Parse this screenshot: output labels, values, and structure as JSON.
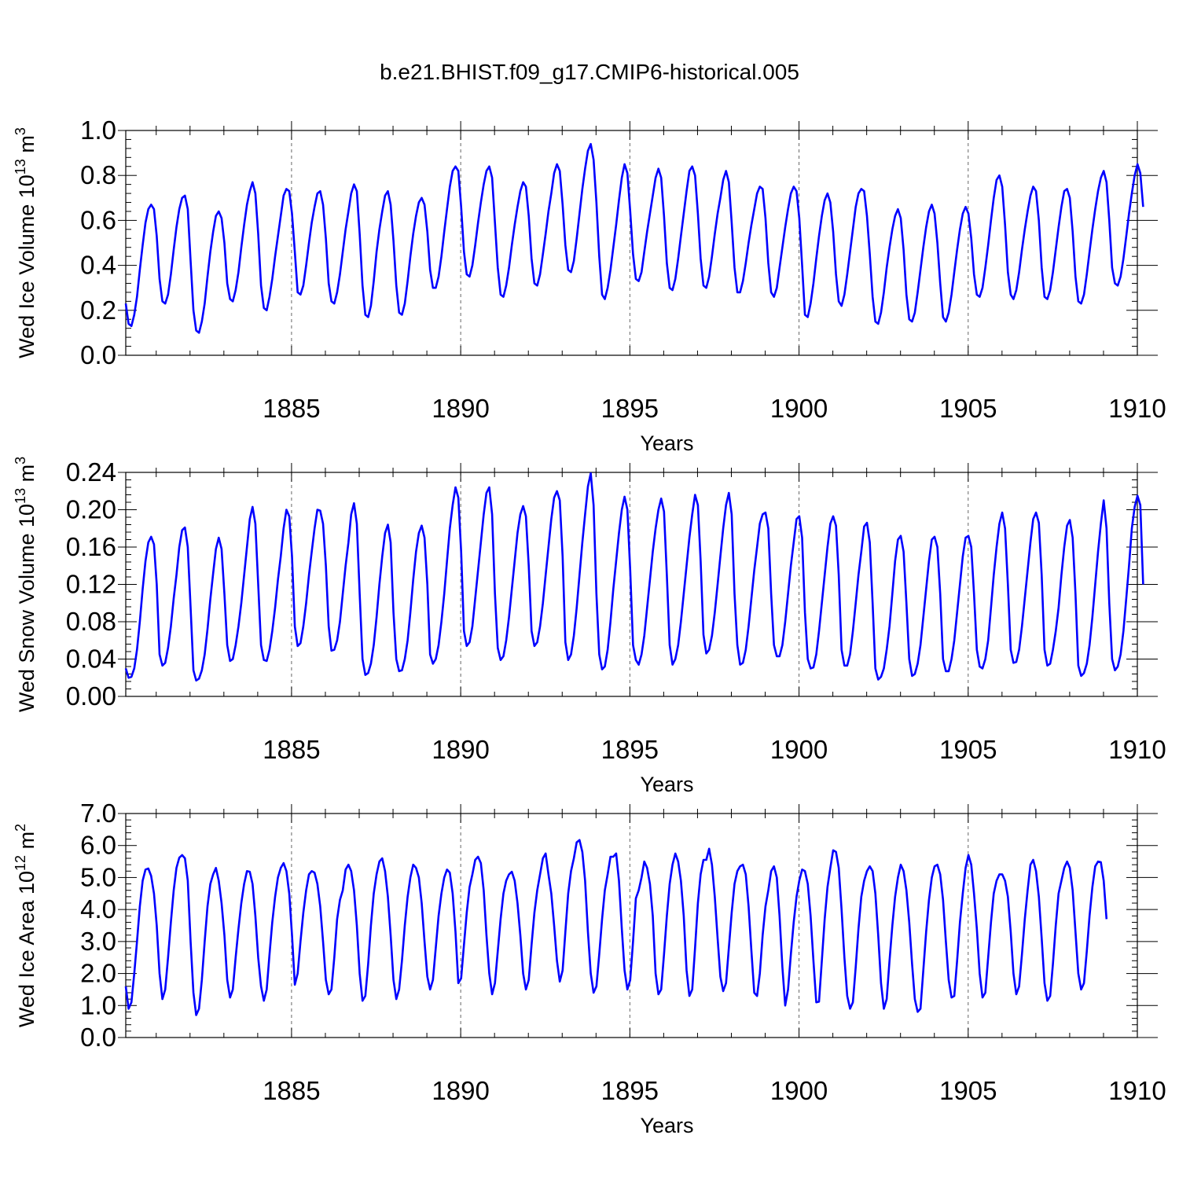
{
  "title": "b.e21.BHIST.f09_g17.CMIP6-historical.005",
  "colors": {
    "line": "#0000ff",
    "axis": "#000000",
    "grid": "#666666"
  },
  "chart_data": [
    {
      "type": "line",
      "id": "ice-volume",
      "ylabel_main": "Wed Ice Volume 10",
      "ylabel_sup": "13",
      "ylabel_unit": " m",
      "ylabel_unit_sup": "3",
      "xlabel": "Years",
      "xlim": [
        1880.1,
        1910
      ],
      "ylim": [
        0.0,
        1.0
      ],
      "yticks": [
        "0.0",
        "0.2",
        "0.4",
        "0.6",
        "0.8",
        "1.0"
      ],
      "xticks": [
        "1885",
        "1890",
        "1895",
        "1900",
        "1905",
        "1910"
      ],
      "start_year": 1880.1,
      "step": 0.0833,
      "values": [
        0.23,
        0.14,
        0.13,
        0.18,
        0.26,
        0.38,
        0.49,
        0.59,
        0.65,
        0.67,
        0.65,
        0.53,
        0.34,
        0.24,
        0.23,
        0.27,
        0.36,
        0.47,
        0.57,
        0.65,
        0.7,
        0.71,
        0.65,
        0.42,
        0.2,
        0.11,
        0.1,
        0.15,
        0.23,
        0.35,
        0.46,
        0.55,
        0.62,
        0.64,
        0.61,
        0.5,
        0.32,
        0.25,
        0.24,
        0.29,
        0.37,
        0.48,
        0.58,
        0.67,
        0.73,
        0.77,
        0.72,
        0.54,
        0.31,
        0.21,
        0.2,
        0.26,
        0.34,
        0.44,
        0.53,
        0.62,
        0.71,
        0.74,
        0.73,
        0.63,
        0.46,
        0.28,
        0.27,
        0.31,
        0.4,
        0.5,
        0.59,
        0.66,
        0.72,
        0.73,
        0.67,
        0.52,
        0.32,
        0.24,
        0.23,
        0.28,
        0.36,
        0.46,
        0.56,
        0.64,
        0.72,
        0.76,
        0.73,
        0.54,
        0.31,
        0.18,
        0.17,
        0.22,
        0.33,
        0.46,
        0.56,
        0.64,
        0.71,
        0.73,
        0.67,
        0.51,
        0.31,
        0.19,
        0.18,
        0.23,
        0.33,
        0.44,
        0.54,
        0.62,
        0.68,
        0.7,
        0.67,
        0.55,
        0.38,
        0.3,
        0.3,
        0.35,
        0.44,
        0.55,
        0.65,
        0.75,
        0.82,
        0.84,
        0.82,
        0.66,
        0.46,
        0.36,
        0.35,
        0.4,
        0.49,
        0.59,
        0.68,
        0.76,
        0.82,
        0.84,
        0.79,
        0.59,
        0.39,
        0.27,
        0.26,
        0.31,
        0.39,
        0.49,
        0.58,
        0.66,
        0.73,
        0.77,
        0.75,
        0.62,
        0.43,
        0.32,
        0.31,
        0.36,
        0.45,
        0.54,
        0.64,
        0.72,
        0.81,
        0.85,
        0.82,
        0.67,
        0.49,
        0.38,
        0.37,
        0.42,
        0.52,
        0.63,
        0.74,
        0.83,
        0.91,
        0.94,
        0.87,
        0.68,
        0.44,
        0.27,
        0.25,
        0.3,
        0.38,
        0.48,
        0.58,
        0.69,
        0.79,
        0.85,
        0.81,
        0.64,
        0.45,
        0.34,
        0.33,
        0.37,
        0.46,
        0.55,
        0.63,
        0.71,
        0.79,
        0.83,
        0.79,
        0.62,
        0.41,
        0.3,
        0.29,
        0.34,
        0.43,
        0.53,
        0.63,
        0.73,
        0.82,
        0.84,
        0.8,
        0.63,
        0.43,
        0.31,
        0.3,
        0.35,
        0.44,
        0.54,
        0.63,
        0.7,
        0.78,
        0.82,
        0.77,
        0.59,
        0.39,
        0.28,
        0.28,
        0.33,
        0.41,
        0.5,
        0.58,
        0.65,
        0.72,
        0.75,
        0.74,
        0.61,
        0.41,
        0.28,
        0.26,
        0.3,
        0.39,
        0.48,
        0.57,
        0.65,
        0.72,
        0.75,
        0.73,
        0.61,
        0.4,
        0.18,
        0.17,
        0.23,
        0.32,
        0.43,
        0.53,
        0.62,
        0.69,
        0.72,
        0.68,
        0.55,
        0.36,
        0.24,
        0.22,
        0.27,
        0.36,
        0.46,
        0.56,
        0.66,
        0.72,
        0.74,
        0.73,
        0.62,
        0.45,
        0.26,
        0.15,
        0.14,
        0.19,
        0.28,
        0.39,
        0.48,
        0.56,
        0.62,
        0.65,
        0.61,
        0.47,
        0.27,
        0.16,
        0.15,
        0.19,
        0.28,
        0.38,
        0.48,
        0.57,
        0.64,
        0.67,
        0.63,
        0.5,
        0.32,
        0.17,
        0.15,
        0.19,
        0.27,
        0.37,
        0.47,
        0.56,
        0.63,
        0.66,
        0.63,
        0.52,
        0.36,
        0.27,
        0.26,
        0.3,
        0.39,
        0.49,
        0.6,
        0.7,
        0.78,
        0.8,
        0.75,
        0.58,
        0.37,
        0.27,
        0.25,
        0.29,
        0.37,
        0.47,
        0.56,
        0.64,
        0.71,
        0.75,
        0.73,
        0.6,
        0.39,
        0.26,
        0.25,
        0.29,
        0.37,
        0.47,
        0.57,
        0.66,
        0.73,
        0.74,
        0.7,
        0.55,
        0.35,
        0.24,
        0.23,
        0.27,
        0.36,
        0.46,
        0.56,
        0.65,
        0.73,
        0.79,
        0.82,
        0.77,
        0.6,
        0.39,
        0.32,
        0.31,
        0.35,
        0.43,
        0.53,
        0.63,
        0.72,
        0.8,
        0.85,
        0.81,
        0.66
      ]
    },
    {
      "type": "line",
      "id": "snow-volume",
      "ylabel_main": "Wed Snow Volume 10",
      "ylabel_sup": "13",
      "ylabel_unit": " m",
      "ylabel_unit_sup": "3",
      "xlabel": "Years",
      "xlim": [
        1880.1,
        1910
      ],
      "ylim": [
        0.0,
        0.24
      ],
      "yticks": [
        "0.00",
        "0.04",
        "0.08",
        "0.12",
        "0.16",
        "0.20",
        "0.24"
      ],
      "xticks": [
        "1885",
        "1890",
        "1895",
        "1900",
        "1905",
        "1910"
      ],
      "start_year": 1880.1,
      "step": 0.0833,
      "values": [
        0.03,
        0.02,
        0.021,
        0.03,
        0.05,
        0.08,
        0.115,
        0.145,
        0.165,
        0.171,
        0.163,
        0.12,
        0.045,
        0.033,
        0.036,
        0.052,
        0.075,
        0.105,
        0.13,
        0.16,
        0.178,
        0.181,
        0.16,
        0.095,
        0.028,
        0.017,
        0.019,
        0.028,
        0.045,
        0.072,
        0.104,
        0.132,
        0.158,
        0.17,
        0.158,
        0.11,
        0.055,
        0.038,
        0.04,
        0.055,
        0.075,
        0.1,
        0.13,
        0.16,
        0.19,
        0.203,
        0.185,
        0.12,
        0.055,
        0.039,
        0.038,
        0.05,
        0.07,
        0.095,
        0.125,
        0.15,
        0.18,
        0.2,
        0.193,
        0.15,
        0.075,
        0.054,
        0.057,
        0.075,
        0.1,
        0.13,
        0.155,
        0.18,
        0.2,
        0.199,
        0.185,
        0.14,
        0.075,
        0.049,
        0.05,
        0.06,
        0.08,
        0.11,
        0.14,
        0.165,
        0.195,
        0.207,
        0.185,
        0.11,
        0.04,
        0.023,
        0.025,
        0.035,
        0.055,
        0.085,
        0.12,
        0.15,
        0.175,
        0.184,
        0.165,
        0.09,
        0.04,
        0.027,
        0.028,
        0.04,
        0.06,
        0.09,
        0.125,
        0.155,
        0.175,
        0.183,
        0.17,
        0.12,
        0.045,
        0.035,
        0.04,
        0.055,
        0.08,
        0.11,
        0.145,
        0.18,
        0.205,
        0.224,
        0.213,
        0.155,
        0.07,
        0.054,
        0.058,
        0.075,
        0.105,
        0.135,
        0.165,
        0.195,
        0.218,
        0.224,
        0.195,
        0.11,
        0.052,
        0.039,
        0.043,
        0.06,
        0.085,
        0.115,
        0.145,
        0.175,
        0.195,
        0.204,
        0.193,
        0.14,
        0.07,
        0.054,
        0.058,
        0.075,
        0.1,
        0.13,
        0.16,
        0.19,
        0.213,
        0.22,
        0.21,
        0.15,
        0.058,
        0.039,
        0.045,
        0.065,
        0.095,
        0.13,
        0.165,
        0.195,
        0.225,
        0.239,
        0.205,
        0.11,
        0.045,
        0.029,
        0.032,
        0.05,
        0.08,
        0.115,
        0.145,
        0.175,
        0.2,
        0.214,
        0.2,
        0.135,
        0.055,
        0.039,
        0.034,
        0.045,
        0.065,
        0.095,
        0.125,
        0.155,
        0.18,
        0.2,
        0.212,
        0.198,
        0.13,
        0.055,
        0.034,
        0.04,
        0.055,
        0.08,
        0.11,
        0.14,
        0.17,
        0.195,
        0.216,
        0.205,
        0.145,
        0.066,
        0.046,
        0.05,
        0.065,
        0.09,
        0.12,
        0.15,
        0.18,
        0.205,
        0.218,
        0.195,
        0.11,
        0.055,
        0.034,
        0.036,
        0.05,
        0.075,
        0.105,
        0.135,
        0.16,
        0.185,
        0.195,
        0.197,
        0.18,
        0.11,
        0.055,
        0.043,
        0.043,
        0.055,
        0.08,
        0.11,
        0.14,
        0.165,
        0.19,
        0.193,
        0.17,
        0.09,
        0.04,
        0.03,
        0.031,
        0.045,
        0.07,
        0.1,
        0.13,
        0.16,
        0.185,
        0.193,
        0.183,
        0.13,
        0.05,
        0.033,
        0.033,
        0.045,
        0.07,
        0.1,
        0.13,
        0.155,
        0.182,
        0.186,
        0.165,
        0.1,
        0.03,
        0.018,
        0.021,
        0.03,
        0.05,
        0.075,
        0.11,
        0.145,
        0.168,
        0.172,
        0.155,
        0.1,
        0.04,
        0.022,
        0.024,
        0.035,
        0.055,
        0.085,
        0.115,
        0.145,
        0.168,
        0.171,
        0.16,
        0.11,
        0.04,
        0.027,
        0.027,
        0.04,
        0.06,
        0.09,
        0.12,
        0.15,
        0.17,
        0.172,
        0.16,
        0.11,
        0.05,
        0.032,
        0.03,
        0.04,
        0.06,
        0.095,
        0.13,
        0.16,
        0.185,
        0.197,
        0.18,
        0.12,
        0.05,
        0.036,
        0.037,
        0.05,
        0.075,
        0.105,
        0.135,
        0.165,
        0.19,
        0.197,
        0.186,
        0.13,
        0.05,
        0.033,
        0.035,
        0.05,
        0.07,
        0.095,
        0.13,
        0.16,
        0.183,
        0.189,
        0.17,
        0.11,
        0.033,
        0.022,
        0.025,
        0.035,
        0.055,
        0.085,
        0.12,
        0.155,
        0.185,
        0.21,
        0.18,
        0.1,
        0.04,
        0.028,
        0.032,
        0.045,
        0.07,
        0.105,
        0.14,
        0.18,
        0.203,
        0.215,
        0.205,
        0.12
      ]
    },
    {
      "type": "line",
      "id": "ice-area",
      "ylabel_main": "Wed Ice Area 10",
      "ylabel_sup": "12",
      "ylabel_unit": " m",
      "ylabel_unit_sup": "2",
      "xlabel": "Years",
      "xlim": [
        1880.1,
        1910
      ],
      "ylim": [
        0.0,
        7.0
      ],
      "yticks": [
        "0.0",
        "1.0",
        "2.0",
        "3.0",
        "4.0",
        "5.0",
        "6.0",
        "7.0"
      ],
      "xticks": [
        "1885",
        "1890",
        "1895",
        "1900",
        "1905",
        "1910"
      ],
      "start_year": 1880.1,
      "step": 0.0833,
      "values": [
        1.6,
        0.9,
        1.1,
        2.0,
        3.0,
        4.1,
        4.9,
        5.25,
        5.28,
        5.05,
        4.5,
        3.5,
        2.0,
        1.2,
        1.5,
        2.5,
        3.6,
        4.6,
        5.3,
        5.62,
        5.7,
        5.6,
        4.9,
        3.0,
        1.4,
        0.7,
        0.9,
        1.8,
        3.0,
        4.1,
        4.8,
        5.1,
        5.3,
        4.9,
        4.2,
        3.2,
        1.8,
        1.25,
        1.5,
        2.5,
        3.4,
        4.2,
        4.8,
        5.2,
        5.18,
        4.8,
        3.8,
        2.5,
        1.6,
        1.15,
        1.5,
        2.6,
        3.6,
        4.4,
        5.0,
        5.3,
        5.45,
        5.2,
        4.5,
        3.2,
        1.65,
        2.0,
        3.0,
        3.9,
        4.6,
        5.1,
        5.2,
        5.15,
        4.8,
        4.1,
        3.0,
        1.8,
        1.35,
        1.5,
        2.5,
        3.7,
        4.3,
        4.6,
        5.25,
        5.4,
        5.2,
        4.6,
        3.5,
        2.0,
        1.15,
        1.3,
        2.3,
        3.5,
        4.5,
        5.1,
        5.5,
        5.6,
        5.2,
        4.4,
        3.2,
        1.8,
        1.2,
        1.5,
        2.4,
        3.5,
        4.4,
        5.0,
        5.4,
        5.3,
        5.0,
        4.2,
        3.0,
        1.9,
        1.5,
        1.8,
        2.8,
        3.8,
        4.5,
        5.0,
        5.25,
        5.15,
        4.5,
        3.3,
        1.7,
        1.85,
        2.9,
        3.9,
        4.7,
        5.1,
        5.55,
        5.65,
        5.45,
        4.6,
        3.2,
        2.0,
        1.35,
        1.7,
        2.7,
        3.7,
        4.5,
        4.9,
        5.1,
        5.18,
        4.9,
        4.2,
        3.2,
        2.0,
        1.5,
        1.8,
        2.9,
        3.9,
        4.6,
        5.1,
        5.6,
        5.75,
        5.1,
        4.5,
        3.5,
        2.4,
        1.75,
        2.1,
        3.3,
        4.5,
        5.2,
        5.6,
        6.1,
        6.17,
        5.8,
        4.9,
        3.3,
        2.0,
        1.4,
        1.6,
        2.6,
        3.7,
        4.6,
        5.1,
        5.65,
        5.65,
        5.75,
        4.9,
        3.4,
        2.1,
        1.5,
        1.8,
        3.0,
        4.35,
        4.6,
        5.0,
        5.5,
        5.3,
        4.8,
        3.8,
        2.0,
        1.35,
        1.5,
        2.6,
        3.8,
        4.8,
        5.4,
        5.75,
        5.5,
        4.9,
        3.8,
        2.1,
        1.3,
        1.5,
        2.8,
        4.2,
        5.1,
        5.55,
        5.55,
        5.9,
        5.4,
        4.4,
        3.1,
        1.9,
        1.45,
        1.7,
        2.8,
        3.9,
        4.8,
        5.2,
        5.35,
        5.4,
        5.1,
        4.1,
        2.7,
        1.4,
        1.3,
        2.0,
        3.2,
        4.1,
        4.6,
        5.2,
        5.35,
        5.0,
        3.8,
        2.2,
        1.0,
        1.5,
        2.6,
        3.6,
        4.4,
        4.9,
        5.25,
        5.2,
        4.8,
        3.8,
        2.4,
        1.1,
        1.12,
        2.4,
        3.7,
        4.7,
        5.3,
        5.85,
        5.8,
        5.3,
        4.0,
        2.5,
        1.3,
        0.9,
        1.1,
        2.2,
        3.4,
        4.4,
        4.9,
        5.2,
        5.35,
        5.2,
        4.5,
        3.2,
        1.7,
        0.9,
        1.2,
        2.4,
        3.5,
        4.4,
        5.0,
        5.4,
        5.2,
        4.6,
        3.6,
        2.3,
        1.2,
        0.8,
        0.9,
        2.1,
        3.3,
        4.3,
        5.0,
        5.35,
        5.4,
        5.1,
        4.3,
        3.0,
        1.8,
        1.25,
        1.3,
        2.4,
        3.6,
        4.5,
        5.3,
        5.7,
        5.4,
        4.5,
        3.4,
        2.0,
        1.25,
        1.4,
        2.5,
        3.6,
        4.5,
        4.9,
        5.1,
        5.1,
        4.9,
        4.4,
        3.3,
        2.0,
        1.35,
        1.6,
        2.6,
        3.7,
        4.6,
        5.4,
        5.55,
        5.2,
        4.4,
        3.1,
        1.7,
        1.15,
        1.3,
        2.3,
        3.5,
        4.5,
        4.9,
        5.3,
        5.5,
        5.3,
        4.6,
        3.3,
        2.0,
        1.5,
        1.7,
        2.7,
        3.8,
        4.7,
        5.35,
        5.5,
        5.48,
        4.9,
        3.7
      ]
    }
  ]
}
